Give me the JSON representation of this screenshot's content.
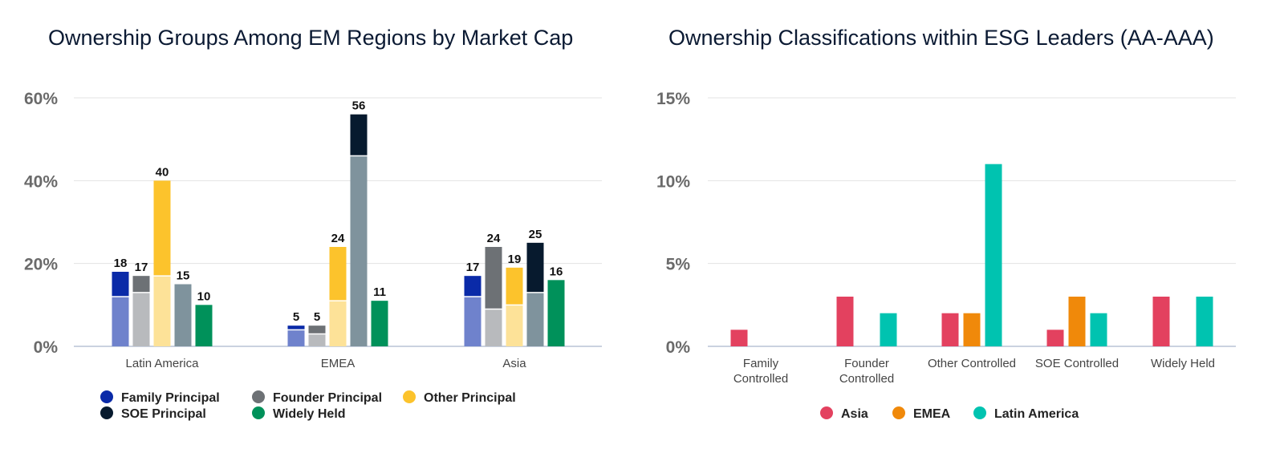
{
  "chart_data": [
    {
      "type": "bar",
      "title": "Ownership Groups Among EM Regions by Market Cap",
      "categories": [
        "Latin America",
        "EMEA",
        "Asia"
      ],
      "yticks": [
        "0%",
        "20%",
        "40%",
        "60%"
      ],
      "ylim": [
        0,
        60
      ],
      "grid": true,
      "legend_position": "bottom",
      "series": [
        {
          "name": "Family Principal",
          "values": [
            18,
            5,
            17
          ],
          "lower": [
            12,
            4,
            12
          ],
          "color": "#0a2aa8",
          "lower_color": "#6f82cc"
        },
        {
          "name": "Founder Principal",
          "values": [
            17,
            5,
            24
          ],
          "lower": [
            13,
            3,
            9
          ],
          "color": "#6d7175",
          "lower_color": "#b8babd"
        },
        {
          "name": "Other Principal",
          "values": [
            40,
            24,
            19
          ],
          "lower": [
            17,
            11,
            10
          ],
          "color": "#fcc32c",
          "lower_color": "#fde298"
        },
        {
          "name": "SOE Principal",
          "values": [
            15,
            56,
            25
          ],
          "lower": [
            15,
            46,
            13
          ],
          "color": "#071a2e",
          "lower_color": "#7f939d"
        },
        {
          "name": "Widely Held",
          "values": [
            10,
            11,
            16
          ],
          "lower": [
            10,
            11,
            16
          ],
          "color": "#00915a",
          "lower_color": "#00915a"
        }
      ],
      "data_labels": [
        [
          "18",
          "17",
          "40",
          "15",
          "10"
        ],
        [
          "5",
          "5",
          "24",
          "56",
          "11"
        ],
        [
          "17",
          "24",
          "19",
          "25",
          "16"
        ]
      ]
    },
    {
      "type": "bar",
      "title": "Ownership Classifications within ESG Leaders (AA-AAA)",
      "categories": [
        [
          "Family",
          "Controlled"
        ],
        [
          "Founder",
          "Controlled"
        ],
        [
          "Other Controlled"
        ],
        [
          "SOE Controlled"
        ],
        [
          "Widely Held"
        ]
      ],
      "yticks": [
        "0%",
        "5%",
        "10%",
        "15%"
      ],
      "ylim": [
        0,
        15
      ],
      "grid": true,
      "legend_position": "bottom",
      "series": [
        {
          "name": "Asia",
          "values": [
            1,
            3,
            2,
            1,
            3
          ],
          "color": "#e3415f"
        },
        {
          "name": "EMEA",
          "values": [
            0,
            0,
            2,
            3,
            0
          ],
          "color": "#f0890a"
        },
        {
          "name": "Latin America",
          "values": [
            0,
            2,
            11,
            2,
            3
          ],
          "color": "#00c3b0"
        }
      ]
    }
  ]
}
